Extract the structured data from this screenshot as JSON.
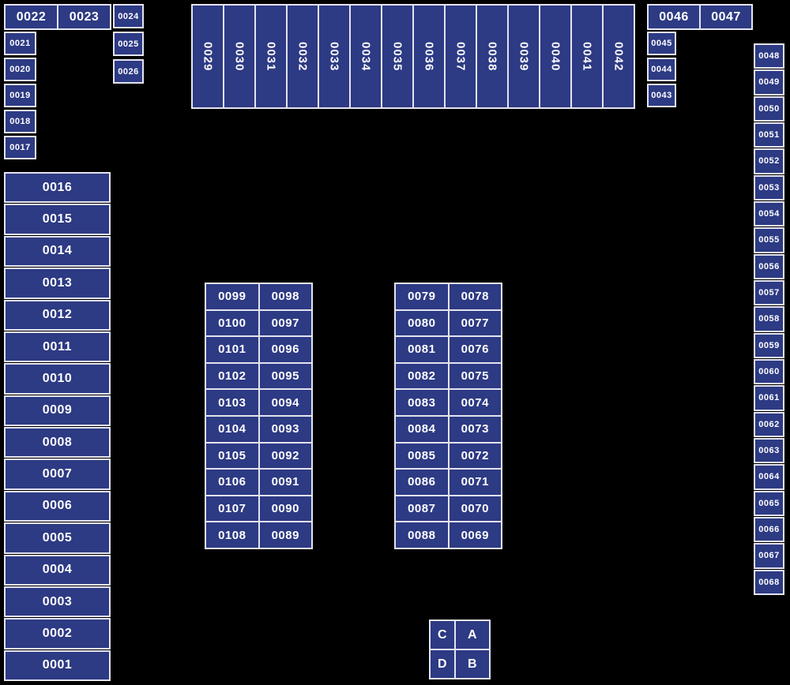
{
  "title": "Numbered booth floor plan",
  "colors": {
    "background": "#000000",
    "cell_fill": "#2d3a84",
    "cell_border": "#e4e4ee",
    "cell_text": "#ffffff"
  },
  "regions": {
    "top_left_row": [
      "0022",
      "0023"
    ],
    "top_left_side_col": [
      "0021",
      "0020",
      "0019",
      "0018",
      "0017"
    ],
    "top_left_box_col": [
      "0024",
      "0025",
      "0026"
    ],
    "top_mid_row": [
      "0029",
      "0030",
      "0031",
      "0032",
      "0033",
      "0034",
      "0035",
      "0036",
      "0037",
      "0038",
      "0039",
      "0040",
      "0041",
      "0042"
    ],
    "top_right_row": [
      "0046",
      "0047"
    ],
    "top_right_col": [
      "0045",
      "0044",
      "0043"
    ],
    "right_col": [
      "0048",
      "0049",
      "0050",
      "0051",
      "0052",
      "0053",
      "0054",
      "0055",
      "0056",
      "0057",
      "0058",
      "0059",
      "0060",
      "0061",
      "0062",
      "0063",
      "0064",
      "0065",
      "0066",
      "0067",
      "0068"
    ],
    "left_col": [
      "0016",
      "0015",
      "0014",
      "0013",
      "0012",
      "0011",
      "0010",
      "0009",
      "0008",
      "0007",
      "0006",
      "0005",
      "0004",
      "0003",
      "0002",
      "0001"
    ],
    "mid_left_table": [
      [
        "0099",
        "0098"
      ],
      [
        "0100",
        "0097"
      ],
      [
        "0101",
        "0096"
      ],
      [
        "0102",
        "0095"
      ],
      [
        "0103",
        "0094"
      ],
      [
        "0104",
        "0093"
      ],
      [
        "0105",
        "0092"
      ],
      [
        "0106",
        "0091"
      ],
      [
        "0107",
        "0090"
      ],
      [
        "0108",
        "0089"
      ]
    ],
    "mid_right_table": [
      [
        "0079",
        "0078"
      ],
      [
        "0080",
        "0077"
      ],
      [
        "0081",
        "0076"
      ],
      [
        "0082",
        "0075"
      ],
      [
        "0083",
        "0074"
      ],
      [
        "0084",
        "0073"
      ],
      [
        "0085",
        "0072"
      ],
      [
        "0086",
        "0071"
      ],
      [
        "0087",
        "0070"
      ],
      [
        "0088",
        "0069"
      ]
    ],
    "legend_table": [
      [
        "C",
        "A"
      ],
      [
        "D",
        "B"
      ]
    ]
  }
}
